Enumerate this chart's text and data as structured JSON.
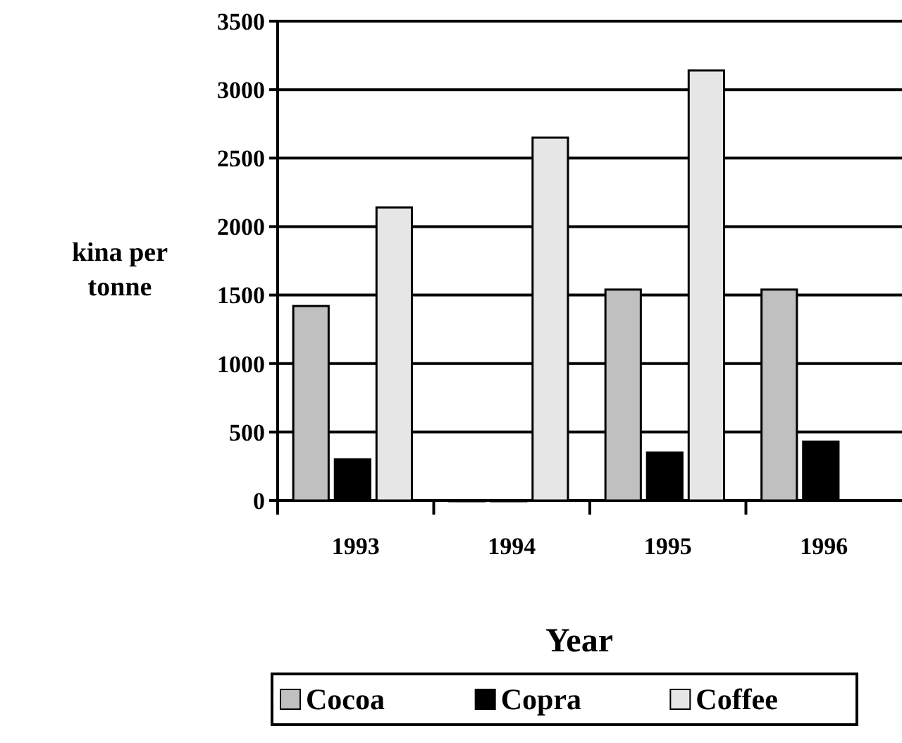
{
  "chart_data": {
    "type": "bar",
    "xlabel": "Year",
    "ylabel": "kina per tonne",
    "categories": [
      "1993",
      "1994",
      "1995",
      "1996"
    ],
    "series": [
      {
        "name": "Cocoa",
        "color": "#c0c0c0",
        "values": [
          1420,
          0,
          1540,
          1540
        ]
      },
      {
        "name": "Copra",
        "color": "#000000",
        "values": [
          300,
          0,
          350,
          430
        ]
      },
      {
        "name": "Coffee",
        "color": "#e6e6e6",
        "values": [
          2140,
          2650,
          3140,
          null
        ]
      }
    ],
    "ylim": [
      0,
      3500
    ],
    "yticks": [
      0,
      500,
      1000,
      1500,
      2000,
      2500,
      3000,
      3500
    ],
    "grid": "y",
    "legend": "bottom"
  }
}
